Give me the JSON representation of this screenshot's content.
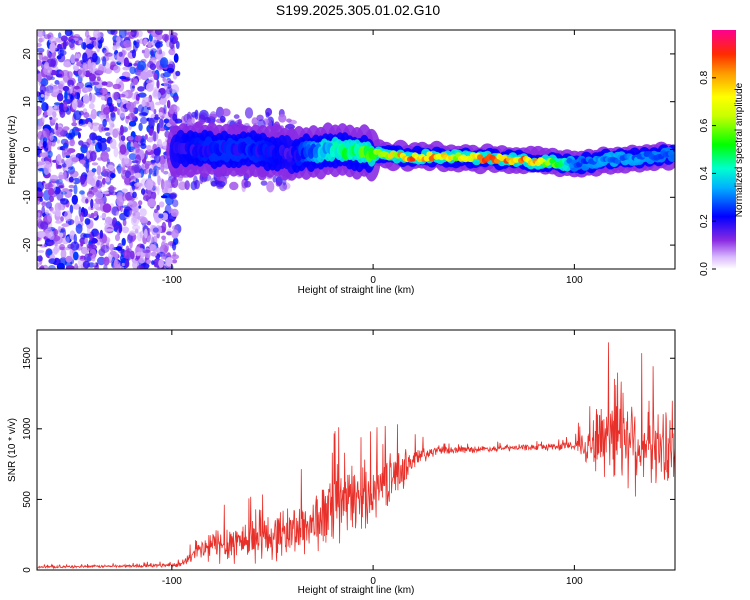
{
  "title": "S199.2025.305.01.02.G10",
  "chart_data": [
    {
      "type": "heatmap",
      "xlabel": "Height of straight line (km)",
      "ylabel": "Frequency (Hz)",
      "xlim": [
        -167,
        150
      ],
      "ylim": [
        -25,
        25
      ],
      "xticks": [
        -100,
        0,
        100
      ],
      "yticks": [
        -20,
        -10,
        0,
        10,
        20
      ],
      "colorbar": {
        "label": "Normalized spectral amplitude",
        "range": [
          0,
          1
        ],
        "ticks": [
          0.0,
          0.2,
          0.4,
          0.6,
          0.8
        ]
      },
      "ridge": {
        "description_points_x": [
          -100,
          -80,
          -60,
          -40,
          -20,
          0,
          20,
          40,
          60,
          80,
          100,
          120,
          150
        ],
        "frequency_hz": [
          0,
          0,
          0,
          -1,
          0,
          -1,
          -1.5,
          -1.5,
          -2,
          -2.5,
          -3,
          -2,
          -1
        ],
        "amplitude": [
          0.2,
          0.25,
          0.25,
          0.2,
          0.45,
          0.6,
          0.9,
          0.75,
          0.9,
          0.85,
          0.3,
          0.35,
          0.3
        ]
      }
    },
    {
      "type": "line",
      "xlabel": "Height of straight line (km)",
      "ylabel": "SNR (10 * v/v)",
      "xlim": [
        -167,
        150
      ],
      "ylim": [
        0,
        1700
      ],
      "xticks": [
        -100,
        0,
        100
      ],
      "yticks": [
        0,
        500,
        1000,
        1500
      ],
      "series": [
        {
          "name": "SNR",
          "color": "#e8302a",
          "x": [
            -167,
            -140,
            -110,
            -95,
            -88,
            -80,
            -70,
            -60,
            -50,
            -40,
            -30,
            -20,
            -10,
            0,
            10,
            20,
            30,
            40,
            60,
            80,
            100,
            108,
            115,
            120,
            125,
            130,
            140,
            150
          ],
          "y": [
            20,
            25,
            30,
            40,
            120,
            170,
            200,
            220,
            240,
            280,
            330,
            420,
            500,
            560,
            660,
            780,
            840,
            850,
            860,
            870,
            880,
            900,
            950,
            1050,
            1000,
            900,
            880,
            850
          ],
          "spread": [
            10,
            10,
            15,
            20,
            80,
            150,
            180,
            180,
            200,
            220,
            250,
            300,
            300,
            250,
            200,
            120,
            40,
            30,
            25,
            25,
            40,
            200,
            400,
            500,
            450,
            400,
            300,
            300
          ]
        }
      ]
    }
  ]
}
